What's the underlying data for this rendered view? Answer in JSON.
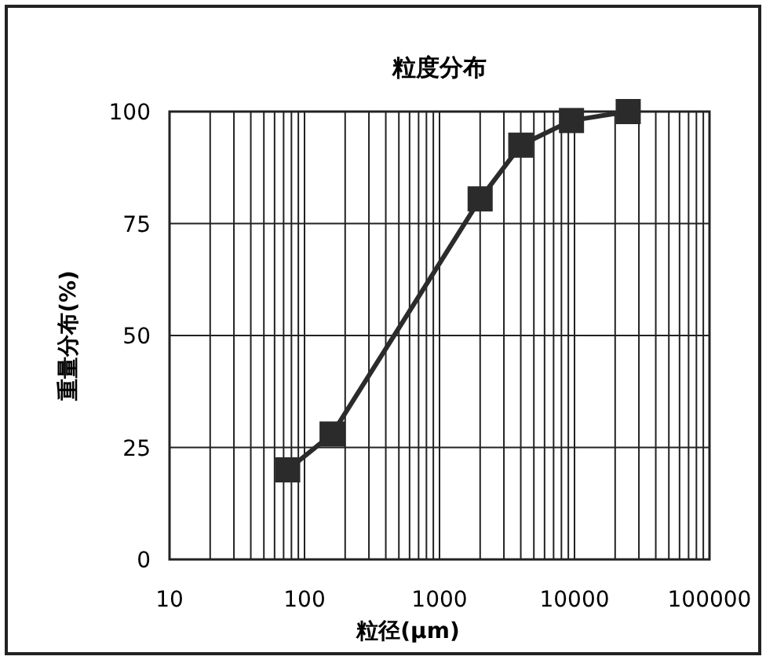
{
  "chart_data": {
    "type": "line",
    "title": "粒度分布",
    "xlabel": "粒径(μm)",
    "ylabel": "重量分布(%)",
    "x": [
      75,
      160,
      2000,
      4000,
      9500,
      25000
    ],
    "series": [
      {
        "color": "#2b2b2b",
        "values": [
          20,
          28,
          80.5,
          92.5,
          98,
          100
        ]
      }
    ],
    "xlim": [
      10,
      100000
    ],
    "xticks": [
      10,
      100,
      1000,
      10000,
      100000
    ],
    "ylim": [
      0,
      100
    ],
    "yticks": [
      0,
      25,
      50,
      75,
      100
    ],
    "log": "x",
    "grid": true,
    "marker": "square",
    "line_style": "solid"
  }
}
